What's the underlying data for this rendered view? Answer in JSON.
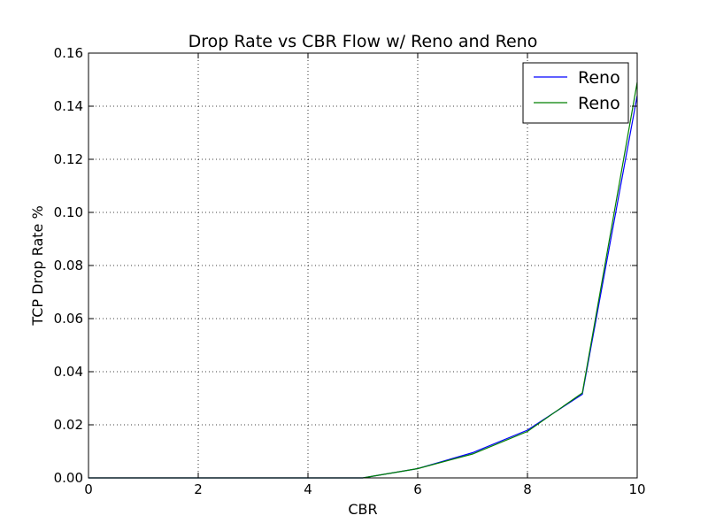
{
  "chart_data": {
    "type": "line",
    "title": "Drop Rate vs CBR Flow w/ Reno and Reno",
    "xlabel": "CBR",
    "ylabel": "TCP Drop Rate %",
    "xlim": [
      0,
      10
    ],
    "ylim": [
      0,
      0.16
    ],
    "xticks": [
      "0",
      "2",
      "4",
      "6",
      "8",
      "10"
    ],
    "yticks": [
      "0.00",
      "0.02",
      "0.04",
      "0.06",
      "0.08",
      "0.10",
      "0.12",
      "0.14",
      "0.16"
    ],
    "grid": true,
    "legend_position": "top-right",
    "x": [
      0,
      1,
      2,
      3,
      4,
      5,
      6,
      7,
      8,
      9,
      10
    ],
    "series": [
      {
        "name": "Reno",
        "color": "#0000ff",
        "values": [
          0,
          0,
          0,
          0,
          0,
          0,
          0.0035,
          0.0095,
          0.018,
          0.0315,
          0.144
        ]
      },
      {
        "name": "Reno",
        "color": "#008000",
        "values": [
          0,
          0,
          0,
          0,
          0,
          0,
          0.0035,
          0.009,
          0.0175,
          0.032,
          0.149
        ]
      }
    ]
  }
}
